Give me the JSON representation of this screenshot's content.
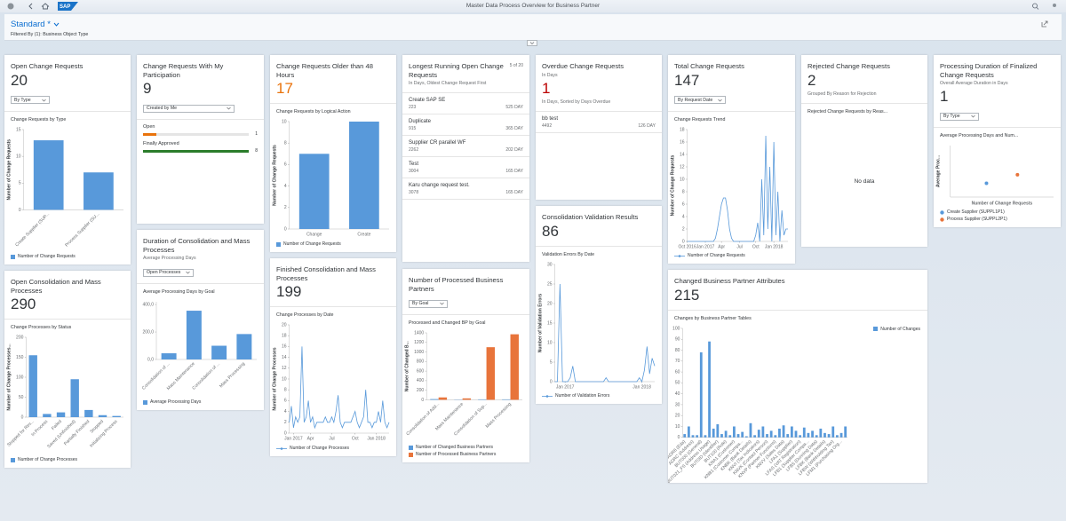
{
  "top_bar": {
    "title": "Master Data Process Overview for Business Partner",
    "logo": "SAP"
  },
  "header": {
    "variant": "Standard *",
    "filter": "Filtered By (1): Business Object Type"
  },
  "cards": [
    {
      "title": "Open Change Requests",
      "kpi": 20,
      "dropdown": "By Type",
      "chart_title": "Change Requests by Type",
      "chart": {
        "type": "bar",
        "y_label": "Number of Change Requests",
        "categories": [
          "Create Supplier (SUP...",
          "Process Supplier (SU..."
        ],
        "series": [
          {
            "name": "Number of Change Requests",
            "color": "#5899da",
            "values": [
              13,
              7
            ]
          }
        ],
        "ylim": [
          0,
          15
        ],
        "yticks": [
          0,
          5,
          10,
          15
        ],
        "legend": "bottom"
      }
    },
    {
      "title": "Change Requests With My Participation",
      "kpi": 9,
      "dropdown": "Created by Me",
      "progress": [
        {
          "label": "Open",
          "value": 1,
          "color": "#e9730c"
        },
        {
          "label": "Finally Approved",
          "value": 8,
          "color": "#2b7d2b"
        }
      ]
    },
    {
      "title": "Change Requests Older than 48 Hours",
      "kpi": 17,
      "kpi_color": "#e9730c",
      "chart_title": "Change Requests by Logical Action",
      "chart": {
        "type": "bar",
        "y_label": "Number of Change Requests",
        "categories": [
          "Change",
          "Create"
        ],
        "series": [
          {
            "name": "Number of Change Requests",
            "color": "#5899da",
            "values": [
              7,
              10
            ]
          }
        ],
        "ylim": [
          0,
          10
        ],
        "yticks": [
          0,
          2,
          4,
          6,
          8,
          10
        ],
        "legend": "bottom"
      }
    },
    {
      "title": "Longest Running Open Change Requests",
      "counter": "5 of 20",
      "subtitle": "In Days, Oldest Change Request First",
      "items": [
        {
          "name": "Create SAP SE",
          "id": 223,
          "duration": "525 DAY"
        },
        {
          "name": "Duplicate",
          "id": 915,
          "duration": "365 DAY"
        },
        {
          "name": "Supplier CR parallel WF",
          "id": 2262,
          "duration": "202 DAY"
        },
        {
          "name": "Test",
          "id": 3004,
          "duration": "165 DAY"
        },
        {
          "name": "Karu change request test.",
          "id": 3078,
          "duration": "165 DAY"
        }
      ]
    },
    {
      "title": "Overdue Change Requests",
      "subtitle": "In Days",
      "kpi": 1,
      "kpi_color": "#bb0000",
      "kpi_note": "In Days, Sorted by Days Overdue",
      "items": [
        {
          "name": "bb test",
          "id": 4492,
          "duration": "126 DAY"
        }
      ]
    },
    {
      "title": "Total Change Requests",
      "kpi": 147,
      "dropdown": "By Request Date",
      "chart_title": "Change Requests Trend",
      "chart": {
        "type": "line",
        "y_label": "Number of Change Requests",
        "categories": [
          "Oct 2016",
          null,
          null,
          null,
          null,
          null,
          null,
          null,
          null,
          "Jan 2017",
          null,
          null,
          null,
          null,
          null,
          null,
          null,
          "Apr",
          null,
          null,
          null,
          null,
          null,
          null,
          null,
          null,
          "Jul",
          null,
          null,
          null,
          null,
          null,
          null,
          null,
          "Oct",
          null,
          null,
          null,
          null,
          null,
          null,
          null,
          null,
          "Jan 2018",
          null,
          null,
          null,
          null,
          null,
          null,
          null
        ],
        "series": [
          {
            "name": "Number of Change Requests",
            "color": "#5899da",
            "values": [
              0,
              0,
              0,
              0,
              0,
              0,
              0,
              0,
              0,
              0,
              0,
              0,
              0,
              0,
              0.5,
              2,
              4,
              6,
              7,
              7,
              5,
              2,
              0.5,
              0,
              0,
              0,
              0,
              0,
              0,
              0,
              0,
              0,
              0,
              0,
              1,
              3,
              0,
              10,
              1,
              17,
              2,
              12,
              0,
              16,
              1,
              8,
              0,
              5,
              1,
              2,
              2
            ]
          }
        ],
        "ylim": [
          0,
          18
        ],
        "yticks": [
          0,
          2,
          4,
          6,
          8,
          10,
          12,
          14,
          16,
          18
        ],
        "legend": "bottom"
      }
    },
    {
      "title": "Rejected Change Requests",
      "kpi": 2,
      "kpi_note": "Grouped By Reason for Rejection",
      "chart_title": "Rejected Change Requests by Reas...",
      "no_data": "No data"
    },
    {
      "title": "Processing Duration of Finalized Change Requests",
      "subtitle": "Overall Average Duration in Days",
      "kpi": 1,
      "dropdown": "By Type",
      "chart_title": "Average Processing Days and Num...",
      "chart": {
        "type": "scatter",
        "y_label": "Average Proc...",
        "x_label": "Number of Change Requests",
        "series": [
          {
            "name": "Create Supplier (SUPPL1P1)",
            "color": "#5899da",
            "x": [
              7
            ],
            "values": [
              0.8
            ]
          },
          {
            "name": "Process Supplier (SUPPL2P1)",
            "color": "#e8743b",
            "x": [
              13
            ],
            "values": [
              1.3
            ]
          }
        ],
        "xlim": [
          0,
          20
        ],
        "ylim": [
          0,
          3
        ],
        "legend": "bottom"
      }
    },
    {
      "title": "Open Consolidation and Mass Processes",
      "kpi": 290,
      "chart_title": "Change Processes by Status",
      "chart": {
        "type": "bar",
        "y_label": "Number of Change Processes...",
        "categories": [
          "Stopped for Rev...",
          "In Process",
          "Failed",
          "Saved (Unfinished)",
          "Partially Finished",
          "Stopped",
          "Initializing Process"
        ],
        "series": [
          {
            "name": "Number of Change Processes",
            "color": "#5899da",
            "values": [
              155,
              8,
              12,
              95,
              18,
              5,
              3
            ]
          }
        ],
        "ylim": [
          0,
          200
        ],
        "yticks": [
          0,
          50,
          100,
          150,
          200
        ],
        "legend": "bottom"
      }
    },
    {
      "title": "Duration of Consolidation and Mass Processes",
      "subtitle": "Average Processing Days",
      "dropdown": "Open Processes",
      "chart_title": "Average Processing Days by Goal",
      "chart": {
        "type": "bar",
        "categories": [
          "Consolidation of ...",
          "Mass Maintenance",
          "Consolidation of ...",
          "Mass Processing"
        ],
        "series": [
          {
            "name": "Average Processing Days",
            "color": "#5899da",
            "values": [
              45,
              355,
              100,
              185
            ]
          }
        ],
        "ylim": [
          0,
          420
        ],
        "yticks": [
          {
            "value": 0,
            "label": "0,0"
          },
          {
            "value": 200,
            "label": "200,0"
          },
          {
            "value": 400,
            "label": "400,0"
          }
        ],
        "legend": "bottom"
      }
    },
    {
      "title": "Finished Consolidation and Mass Processes",
      "kpi": 199,
      "chart_title": "Change Processes by Date",
      "chart": {
        "type": "line",
        "y_label": "Number of Change Processes",
        "categories": [
          null,
          null,
          "Jan 2017",
          null,
          null,
          null,
          null,
          null,
          null,
          null,
          "Apr",
          null,
          null,
          null,
          null,
          null,
          null,
          null,
          null,
          null,
          "Jul",
          null,
          null,
          null,
          null,
          null,
          null,
          null,
          null,
          null,
          null,
          "Oct",
          null,
          null,
          null,
          null,
          null,
          null,
          null,
          null,
          null,
          "Jan 2018",
          null,
          null,
          null,
          null,
          null,
          null
        ],
        "series": [
          {
            "name": "Number of Change Processes",
            "color": "#5899da",
            "values": [
              2,
              5,
              1,
              3,
              2,
              3,
              16,
              2,
              3,
              6,
              2,
              3,
              1,
              2,
              2,
              2,
              2,
              3,
              2,
              2,
              3,
              2,
              4,
              7,
              2,
              1,
              2,
              2,
              2,
              2,
              3,
              4,
              2,
              1,
              2,
              3,
              8,
              2,
              2,
              1,
              2,
              2,
              4,
              2,
              6,
              2,
              1,
              2
            ]
          }
        ],
        "ylim": [
          0,
          20
        ],
        "yticks": [
          0,
          2,
          4,
          6,
          8,
          10,
          12,
          14,
          16,
          18,
          20
        ],
        "legend": "bottom"
      }
    },
    {
      "title": "Number of Processed Business Partners",
      "dropdown": "By Goal",
      "chart_title": "Processed and Changed BP by Goal",
      "chart": {
        "type": "bar",
        "y_label": "Number of Changed B...",
        "categories": [
          "Consolidation of Add...",
          "Mass Maintenance",
          "Consolidation of Sup...",
          "Mass Processing"
        ],
        "series": [
          {
            "name": "Number of Changed Business Partners",
            "color": "#5899da",
            "values": [
              15,
              5,
              10,
              10
            ]
          },
          {
            "name": "Number of Processed Business Partners",
            "color": "#e8743b",
            "values": [
              50,
              30,
              1100,
              1370
            ]
          }
        ],
        "ylim": [
          0,
          1400
        ],
        "yticks": [
          0,
          200,
          400,
          600,
          800,
          1000,
          1200,
          1400
        ],
        "legend": "bottom"
      }
    },
    {
      "title": "Consolidation Validation Results",
      "kpi": 86,
      "chart_title": "Validation Errors By Date",
      "chart": {
        "type": "line",
        "y_label": "Number of Validation Errors",
        "categories": [
          null,
          null,
          null,
          null,
          "Jan 2017",
          null,
          null,
          null,
          null,
          null,
          null,
          null,
          null,
          null,
          null,
          null,
          null,
          null,
          null,
          null,
          null,
          null,
          null,
          null,
          null,
          null,
          null,
          null,
          null,
          null,
          null,
          null,
          null,
          null,
          "Jan 2018",
          null,
          null,
          null,
          null,
          null
        ],
        "series": [
          {
            "name": "Number of Validation Errors",
            "color": "#5899da",
            "values": [
              0,
              0,
              25,
              0,
              0,
              0,
              1,
              4,
              0,
              0,
              0,
              0,
              0,
              0,
              0,
              0,
              0,
              0,
              0,
              0,
              1,
              0,
              0,
              0,
              0,
              0,
              0,
              0,
              0,
              0,
              0,
              0,
              0,
              1,
              0,
              3,
              9,
              2,
              6,
              4
            ]
          }
        ],
        "ylim": [
          0,
          30
        ],
        "yticks": [
          0,
          5,
          10,
          15,
          20,
          25,
          30
        ],
        "legend": "bottom"
      }
    },
    {
      "title": "Changed Business Partner Attributes",
      "kpi": 215,
      "chart_title": "Changes by Business Partner Tables",
      "chart": {
        "type": "bar",
        "categories": [
          "ADR6 (Eda)",
          null,
          "ADRC (Address)",
          null,
          "BUT000 (General)",
          null,
          "BUT021_FS (Address Usage)",
          null,
          "BUT0ID (Identifier)",
          null,
          "BUT100 (Role)",
          null,
          "KNA1 (Customer)",
          null,
          "KNB1 (Customer Compa...",
          null,
          "KNBK (Bank Details)",
          null,
          "KNVI (Tax Indicators)",
          null,
          "KNVK (Contact Person)",
          null,
          "KNVP (Partner Functions)",
          null,
          "KNVV (Sales Data)",
          null,
          "LFA1 (Supplier)",
          null,
          "LFAS (VAT Registration)",
          null,
          "LFB1 (Supplier Compa...",
          null,
          "LFB5 (Dunning Data)",
          null,
          "LFBK (Bank Details)",
          null,
          "LFBW (Withholding Tax)",
          null,
          "LFM1 (Purchasing Org...",
          null
        ],
        "series": [
          {
            "name": "Number of Changes",
            "color": "#5899da",
            "values": [
              3,
              10,
              2,
              2,
              78,
              2,
              88,
              8,
              12,
              3,
              6,
              2,
              10,
              3,
              5,
              1,
              13,
              2,
              7,
              10,
              3,
              6,
              2,
              8,
              11,
              3,
              10,
              6,
              2,
              9,
              4,
              6,
              2,
              8,
              4,
              3,
              10,
              2,
              4,
              10
            ]
          }
        ],
        "ylim": [
          0,
          100
        ],
        "yticks": [
          0,
          10,
          20,
          30,
          40,
          50,
          60,
          70,
          80,
          90,
          100
        ],
        "legend": "top-right"
      }
    }
  ]
}
